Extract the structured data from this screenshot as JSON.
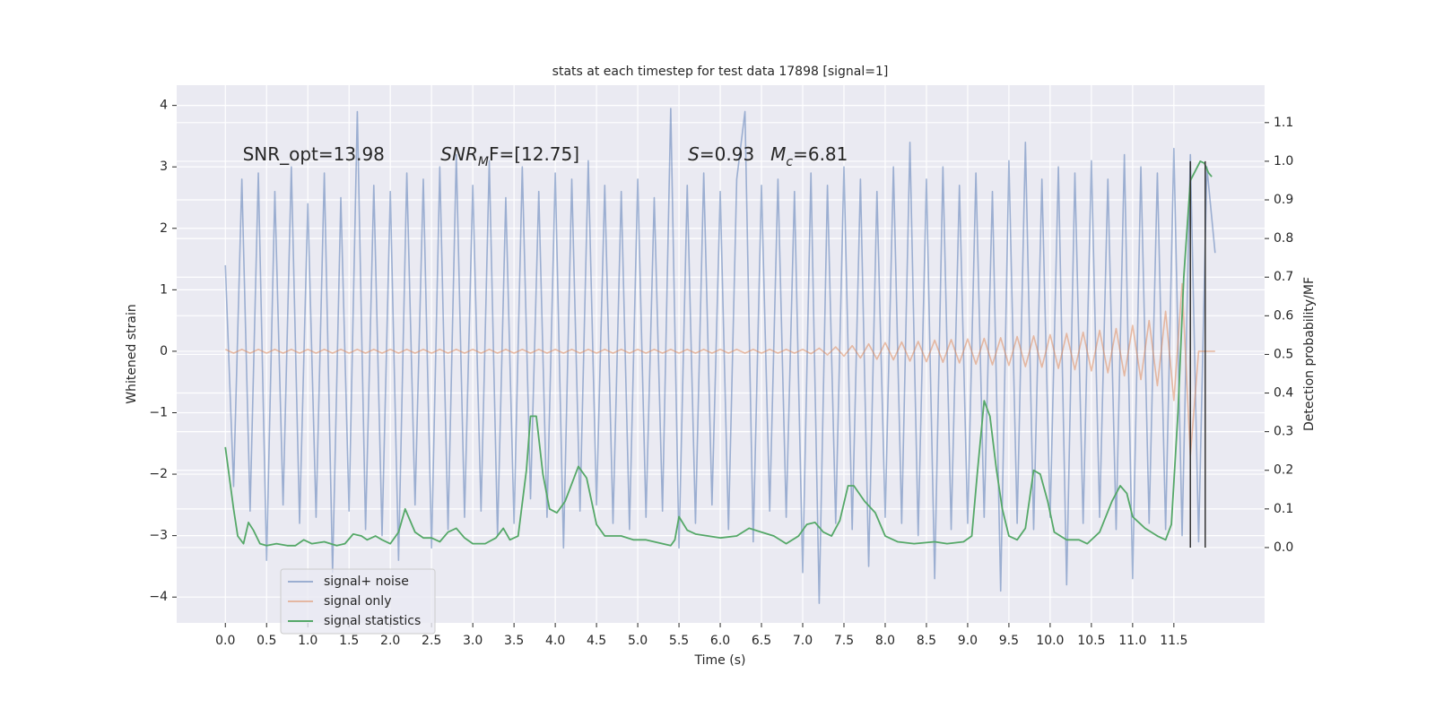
{
  "chart_data": {
    "type": "line",
    "title": "stats at each timestep for test data 17898 [signal=1]",
    "xlabel": "Time (s)",
    "ylabel": "Whitened strain",
    "y2label": "Detection probability/MF",
    "xlim": [
      -0.59,
      12.6
    ],
    "ylim": [
      -4.42,
      4.33
    ],
    "y2lim": [
      -0.195,
      1.197
    ],
    "xticks": [
      {
        "value": 0,
        "label": "0.0"
      },
      0.5,
      {
        "value": 1,
        "label": "1.0"
      },
      1.5,
      {
        "value": 2,
        "label": "2.0"
      },
      2.5,
      {
        "value": 3,
        "label": "3.0"
      },
      3.5,
      {
        "value": 4,
        "label": "4.0"
      },
      4.5,
      {
        "value": 5,
        "label": "5.0"
      },
      5.5,
      {
        "value": 6,
        "label": "6.0"
      },
      6.5,
      {
        "value": 7,
        "label": "7.0"
      },
      7.5,
      {
        "value": 8,
        "label": "8.0"
      },
      8.5,
      {
        "value": 9,
        "label": "9.0"
      },
      9.5,
      {
        "value": 10,
        "label": "10.0"
      },
      10.5,
      {
        "value": 11,
        "label": "11.0"
      },
      11.5
    ],
    "yticks": [
      {
        "value": -4,
        "label": "−4"
      },
      {
        "value": -3,
        "label": "−3"
      },
      {
        "value": -2,
        "label": "−2"
      },
      {
        "value": -1,
        "label": "−1"
      },
      0,
      1,
      2,
      3,
      4
    ],
    "y2ticks": [
      {
        "value": 0,
        "label": "0.0"
      },
      0.1,
      0.2,
      0.3,
      0.4,
      0.5,
      0.6,
      0.7,
      0.8,
      0.9,
      {
        "value": 1,
        "label": "1.0"
      },
      1.1
    ],
    "grid": true,
    "legend": "lower left",
    "series": [
      {
        "name": "signal+ noise",
        "color": "#4c72b0",
        "alpha": 0.5,
        "x": [
          0,
          0.1,
          0.2,
          0.3,
          0.4,
          0.5,
          0.6,
          0.7,
          0.8,
          0.9,
          1,
          1.1,
          1.2,
          1.3,
          1.4,
          1.5,
          1.6,
          1.7,
          1.8,
          1.9,
          2,
          2.1,
          2.2,
          2.3,
          2.4,
          2.5,
          2.6,
          2.7,
          2.8,
          2.9,
          3,
          3.1,
          3.2,
          3.3,
          3.4,
          3.5,
          3.6,
          3.7,
          3.8,
          3.9,
          4,
          4.1,
          4.2,
          4.3,
          4.4,
          4.5,
          4.6,
          4.7,
          4.8,
          4.9,
          5,
          5.1,
          5.2,
          5.3,
          5.4,
          5.5,
          5.6,
          5.7,
          5.8,
          5.9,
          6,
          6.1,
          6.2,
          6.3,
          6.4,
          6.5,
          6.6,
          6.7,
          6.8,
          6.9,
          7,
          7.1,
          7.2,
          7.3,
          7.4,
          7.5,
          7.6,
          7.7,
          7.8,
          7.9,
          8,
          8.1,
          8.2,
          8.3,
          8.4,
          8.5,
          8.6,
          8.7,
          8.8,
          8.9,
          9,
          9.1,
          9.2,
          9.3,
          9.4,
          9.5,
          9.6,
          9.7,
          9.8,
          9.9,
          10,
          10.1,
          10.2,
          10.3,
          10.4,
          10.5,
          10.6,
          10.7,
          10.8,
          10.9,
          11,
          11.1,
          11.2,
          11.3,
          11.4,
          11.5,
          11.6,
          11.7,
          11.8,
          11.9,
          12
        ],
        "values": [
          1.4,
          -2.2,
          2.8,
          -2.6,
          2.9,
          -3.4,
          2.6,
          -2.5,
          3.0,
          -2.8,
          2.4,
          -2.7,
          2.9,
          -3.6,
          2.5,
          -2.6,
          3.9,
          -2.9,
          2.7,
          -3.0,
          2.6,
          -3.4,
          2.9,
          -2.5,
          2.8,
          -3.2,
          3.0,
          -2.9,
          3.2,
          -2.7,
          2.7,
          -2.6,
          3.1,
          -3.0,
          2.5,
          -2.8,
          3.0,
          -2.4,
          2.6,
          -2.7,
          2.9,
          -3.2,
          2.8,
          -2.6,
          3.1,
          -2.5,
          2.7,
          -2.8,
          2.6,
          -2.9,
          2.8,
          -2.7,
          2.5,
          -2.6,
          3.95,
          -3.2,
          2.7,
          -2.8,
          2.9,
          -2.5,
          2.6,
          -2.9,
          2.8,
          3.9,
          -3.1,
          2.7,
          -2.6,
          2.8,
          -2.7,
          2.6,
          -3.6,
          2.9,
          -4.1,
          2.7,
          -2.8,
          3.0,
          -2.9,
          2.8,
          -3.5,
          2.6,
          -2.7,
          3.0,
          -2.8,
          3.4,
          -3.0,
          2.8,
          -3.7,
          3.0,
          -2.9,
          2.7,
          -2.8,
          2.9,
          -2.7,
          2.6,
          -3.9,
          3.1,
          -2.8,
          3.4,
          -2.9,
          2.8,
          -2.7,
          3.0,
          -3.8,
          2.9,
          -2.8,
          3.1,
          -2.7,
          2.8,
          -2.9,
          3.2,
          -3.7,
          3.0,
          -2.8,
          2.9,
          -2.9,
          3.3,
          -3.0,
          3.2,
          -3.1,
          3.0,
          1.6
        ]
      },
      {
        "name": "signal only",
        "color": "#dd8452",
        "alpha": 0.5,
        "x": [
          0,
          0.1,
          0.2,
          0.3,
          0.4,
          0.5,
          0.6,
          0.7,
          0.8,
          0.9,
          1,
          1.1,
          1.2,
          1.3,
          1.4,
          1.5,
          1.6,
          1.7,
          1.8,
          1.9,
          2,
          2.1,
          2.2,
          2.3,
          2.4,
          2.5,
          2.6,
          2.7,
          2.8,
          2.9,
          3,
          3.1,
          3.2,
          3.3,
          3.4,
          3.5,
          3.6,
          3.7,
          3.8,
          3.9,
          4,
          4.1,
          4.2,
          4.3,
          4.4,
          4.5,
          4.6,
          4.7,
          4.8,
          4.9,
          5,
          5.1,
          5.2,
          5.3,
          5.4,
          5.5,
          5.6,
          5.7,
          5.8,
          5.9,
          6,
          6.1,
          6.2,
          6.3,
          6.4,
          6.5,
          6.6,
          6.7,
          6.8,
          6.9,
          7,
          7.1,
          7.2,
          7.3,
          7.4,
          7.5,
          7.6,
          7.7,
          7.8,
          7.9,
          8,
          8.1,
          8.2,
          8.3,
          8.4,
          8.5,
          8.6,
          8.7,
          8.8,
          8.9,
          9,
          9.1,
          9.2,
          9.3,
          9.4,
          9.5,
          9.6,
          9.7,
          9.8,
          9.9,
          10,
          10.1,
          10.2,
          10.3,
          10.4,
          10.5,
          10.6,
          10.7,
          10.8,
          10.9,
          11,
          11.1,
          11.2,
          11.3,
          11.4,
          11.5,
          11.6,
          11.7,
          11.8,
          11.9,
          12
        ],
        "values": [
          0.03,
          -0.03,
          0.03,
          -0.03,
          0.03,
          -0.03,
          0.03,
          -0.03,
          0.03,
          -0.03,
          0.03,
          -0.03,
          0.03,
          -0.03,
          0.03,
          -0.03,
          0.03,
          -0.03,
          0.03,
          -0.03,
          0.03,
          -0.03,
          0.03,
          -0.03,
          0.03,
          -0.03,
          0.03,
          -0.03,
          0.03,
          -0.03,
          0.03,
          -0.03,
          0.03,
          -0.03,
          0.03,
          -0.03,
          0.03,
          -0.03,
          0.03,
          -0.03,
          0.03,
          -0.03,
          0.03,
          -0.03,
          0.03,
          -0.03,
          0.03,
          -0.03,
          0.03,
          -0.03,
          0.03,
          -0.03,
          0.03,
          -0.03,
          0.03,
          -0.03,
          0.03,
          -0.03,
          0.03,
          -0.03,
          0.03,
          -0.03,
          0.03,
          -0.03,
          0.03,
          -0.03,
          0.03,
          -0.03,
          0.03,
          -0.03,
          0.03,
          -0.04,
          0.05,
          -0.06,
          0.07,
          -0.08,
          0.09,
          -0.11,
          0.12,
          -0.13,
          0.14,
          -0.14,
          0.15,
          -0.16,
          0.16,
          -0.17,
          0.18,
          -0.18,
          0.19,
          -0.19,
          0.2,
          -0.21,
          0.21,
          -0.22,
          0.22,
          -0.23,
          0.24,
          -0.25,
          0.25,
          -0.26,
          0.27,
          -0.28,
          0.29,
          -0.3,
          0.31,
          -0.32,
          0.34,
          -0.35,
          0.37,
          -0.4,
          0.42,
          -0.46,
          0.5,
          -0.56,
          0.65,
          -0.8,
          1.1,
          -1.7,
          0,
          0,
          0
        ]
      },
      {
        "name": "signal statistics",
        "color": "#55a868",
        "alpha": 1,
        "axis": "y2",
        "x": [
          0,
          0.05,
          0.1,
          0.15,
          0.22,
          0.28,
          0.34,
          0.42,
          0.5,
          0.62,
          0.75,
          0.85,
          0.95,
          1.05,
          1.2,
          1.35,
          1.45,
          1.55,
          1.65,
          1.72,
          1.82,
          1.9,
          2,
          2.1,
          2.18,
          2.3,
          2.4,
          2.5,
          2.6,
          2.7,
          2.8,
          2.9,
          3,
          3.15,
          3.28,
          3.37,
          3.45,
          3.55,
          3.65,
          3.7,
          3.77,
          3.85,
          3.93,
          4.02,
          4.12,
          4.28,
          4.38,
          4.5,
          4.6,
          4.8,
          4.95,
          5.1,
          5.3,
          5.4,
          5.45,
          5.5,
          5.6,
          5.7,
          5.85,
          6,
          6.2,
          6.35,
          6.5,
          6.65,
          6.8,
          6.95,
          7.05,
          7.15,
          7.25,
          7.35,
          7.45,
          7.55,
          7.62,
          7.75,
          7.88,
          8,
          8.15,
          8.35,
          8.6,
          8.75,
          8.95,
          9.05,
          9.12,
          9.2,
          9.27,
          9.35,
          9.42,
          9.5,
          9.6,
          9.7,
          9.8,
          9.88,
          9.97,
          10.05,
          10.2,
          10.35,
          10.45,
          10.6,
          10.75,
          10.85,
          10.93,
          11,
          11.15,
          11.3,
          11.4,
          11.47,
          11.55,
          11.62,
          11.7,
          11.82,
          11.87,
          11.92,
          11.96
        ],
        "values": [
          0.26,
          0.18,
          0.1,
          0.03,
          0.01,
          0.065,
          0.045,
          0.01,
          0.005,
          0.01,
          0.005,
          0.005,
          0.02,
          0.01,
          0.015,
          0.005,
          0.01,
          0.035,
          0.03,
          0.02,
          0.03,
          0.02,
          0.01,
          0.04,
          0.1,
          0.04,
          0.025,
          0.025,
          0.015,
          0.04,
          0.05,
          0.025,
          0.01,
          0.01,
          0.025,
          0.05,
          0.02,
          0.03,
          0.2,
          0.34,
          0.34,
          0.19,
          0.1,
          0.09,
          0.12,
          0.21,
          0.18,
          0.06,
          0.03,
          0.03,
          0.02,
          0.02,
          0.01,
          0.005,
          0.02,
          0.08,
          0.045,
          0.035,
          0.03,
          0.025,
          0.03,
          0.05,
          0.04,
          0.03,
          0.01,
          0.03,
          0.06,
          0.065,
          0.04,
          0.03,
          0.07,
          0.16,
          0.16,
          0.12,
          0.09,
          0.03,
          0.015,
          0.01,
          0.015,
          0.01,
          0.015,
          0.03,
          0.2,
          0.38,
          0.34,
          0.2,
          0.1,
          0.03,
          0.02,
          0.05,
          0.2,
          0.19,
          0.12,
          0.04,
          0.02,
          0.02,
          0.01,
          0.04,
          0.12,
          0.16,
          0.14,
          0.08,
          0.05,
          0.03,
          0.02,
          0.06,
          0.35,
          0.7,
          0.95,
          1.0,
          0.995,
          0.97,
          0.96
        ]
      }
    ],
    "vlines": {
      "x": [
        11.7,
        11.88
      ],
      "ymin": 0,
      "ymax": 1,
      "axis": "y2",
      "color": "#333333"
    },
    "annotations": [
      {
        "x": 0.21,
        "y": 3.19,
        "parts": [
          {
            "text": "SNR_opt=13.98"
          }
        ]
      },
      {
        "x": 2.61,
        "y": 3.19,
        "parts": [
          {
            "text": "SNR",
            "style": "italic"
          },
          {
            "text": "M",
            "style": "sub"
          },
          {
            "text": "F=[12.75]"
          }
        ]
      },
      {
        "x": 5.61,
        "y": 3.19,
        "parts": [
          {
            "text": "S",
            "style": "italic"
          },
          {
            "text": "=0.93"
          }
        ]
      },
      {
        "x": 6.61,
        "y": 3.19,
        "parts": [
          {
            "text": "M",
            "style": "italic"
          },
          {
            "text": "c",
            "style": "sub"
          },
          {
            "text": "=6.81"
          }
        ]
      }
    ]
  }
}
